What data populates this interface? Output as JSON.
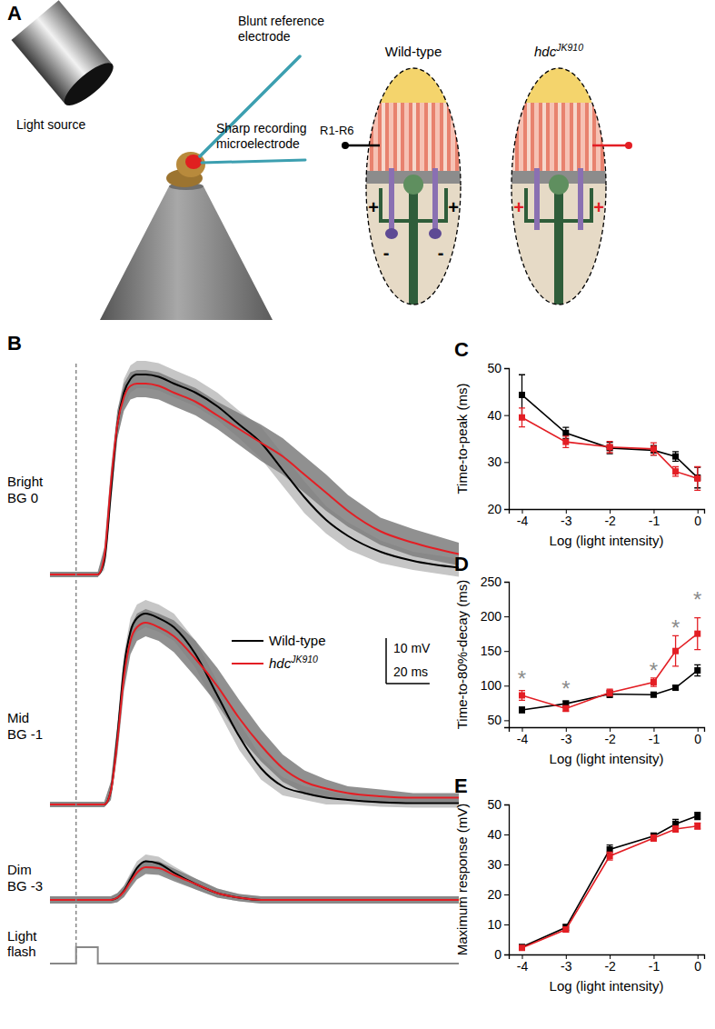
{
  "chart_data": [
    {
      "type": "line",
      "title": "B",
      "annotation": [
        "Bright",
        "BG 0"
      ],
      "tick_labels": false,
      "xlim": [
        -12,
        176
      ],
      "ylim": [
        -4,
        48
      ],
      "x": [
        -12,
        0,
        10,
        13,
        16,
        19,
        22,
        25,
        28,
        32,
        38,
        45,
        55,
        65,
        75,
        85,
        95,
        105,
        115,
        125,
        140,
        155,
        176
      ],
      "series": [
        {
          "color": "#000000",
          "values": [
            0,
            0,
            0,
            3,
            18,
            33,
            40,
            43,
            44,
            44,
            43.5,
            42,
            40,
            37,
            33,
            29,
            23,
            17,
            12,
            8.5,
            5,
            3,
            1.5
          ],
          "error": [
            0.6,
            0.6,
            0.6,
            2,
            3,
            3,
            3,
            3,
            3,
            3,
            3,
            3,
            3,
            3,
            3,
            3.5,
            3.5,
            3.5,
            3,
            3,
            2.5,
            2,
            2
          ]
        },
        {
          "color": "#e31e24",
          "values": [
            0,
            0,
            0,
            4,
            20,
            33,
            39,
            41.5,
            42,
            42,
            41.5,
            40,
            38,
            35,
            32,
            29,
            26,
            22,
            18,
            14,
            9.5,
            7,
            4.5
          ],
          "error": [
            0.6,
            0.6,
            0.6,
            2,
            3,
            3,
            3,
            3,
            3,
            3,
            3,
            3,
            3,
            3,
            3.5,
            4,
            4,
            4,
            4,
            3.5,
            3,
            3,
            2.5
          ]
        }
      ]
    },
    {
      "type": "line",
      "annotation": [
        "Mid",
        "BG -1"
      ],
      "tick_labels": false,
      "legend": "right",
      "xlim": [
        -12,
        176
      ],
      "ylim": [
        -4,
        46
      ],
      "x": [
        -12,
        0,
        10,
        13,
        16,
        19,
        22,
        25,
        28,
        32,
        38,
        45,
        55,
        65,
        75,
        85,
        95,
        105,
        115,
        125,
        140,
        155,
        176
      ],
      "series": [
        {
          "name": "Wild-type",
          "color": "#000000",
          "values": [
            0,
            0,
            0,
            0,
            3,
            15,
            30,
            38,
            41,
            42,
            41,
            39,
            33,
            24,
            15,
            8,
            4,
            2.5,
            1.5,
            1,
            0.5,
            0.3,
            0.3
          ],
          "error": [
            0.6,
            0.6,
            0.6,
            0.6,
            2,
            3,
            3,
            3,
            3,
            3,
            3,
            3,
            3,
            3,
            3,
            2.5,
            2,
            1.5,
            1.5,
            1,
            1,
            1,
            1
          ]
        },
        {
          "name": "hdcJK910",
          "color": "#e31e24",
          "values": [
            0,
            0,
            0,
            0,
            3,
            14,
            28,
            36,
            39,
            40,
            39,
            37,
            32,
            26,
            19,
            13,
            8,
            5,
            3.5,
            2.5,
            1.8,
            1.5,
            1.5
          ],
          "error": [
            0.6,
            0.6,
            0.6,
            0.6,
            2,
            3,
            3,
            3,
            3,
            3,
            3,
            3.5,
            4,
            4,
            4,
            3.5,
            3,
            2.5,
            2,
            1.5,
            1.5,
            1,
            1
          ]
        }
      ],
      "scale_bar": {
        "x": 20,
        "y": 10,
        "x_label": "20 ms",
        "y_label": "10 mV"
      }
    },
    {
      "type": "line",
      "annotation": [
        "Dim",
        "BG -3"
      ],
      "tick_labels": false,
      "xlim": [
        -12,
        176
      ],
      "ylim": [
        -4,
        12
      ],
      "x": [
        -12,
        0,
        10,
        13,
        16,
        19,
        22,
        25,
        28,
        32,
        38,
        45,
        55,
        65,
        75,
        85,
        95,
        105,
        115,
        125,
        140,
        155,
        176
      ],
      "series": [
        {
          "color": "#000000",
          "values": [
            0,
            0,
            0,
            0,
            0,
            0.5,
            2,
            4.5,
            7,
            8.5,
            8,
            6,
            3.5,
            1.5,
            0.5,
            0,
            0,
            0,
            0,
            0,
            0,
            0,
            0
          ],
          "error": [
            0.8,
            0.8,
            0.8,
            0.8,
            0.8,
            1,
            1.2,
            1.4,
            1.5,
            1.5,
            1.5,
            1.4,
            1.2,
            1,
            0.8,
            0.8,
            0.8,
            0.8,
            0.8,
            0.8,
            0.8,
            0.8,
            0.8
          ]
        },
        {
          "color": "#e31e24",
          "values": [
            0,
            0,
            0,
            0,
            0,
            0.5,
            1.8,
            4,
            6,
            7.2,
            7,
            5.5,
            3.5,
            1.5,
            0.5,
            0,
            0,
            0,
            0,
            0,
            0,
            0,
            0
          ],
          "error": [
            0.8,
            0.8,
            0.8,
            0.8,
            0.8,
            1,
            1.2,
            1.4,
            1.5,
            1.5,
            1.5,
            1.4,
            1.2,
            1,
            0.8,
            0.8,
            0.8,
            0.8,
            0.8,
            0.8,
            0.8,
            0.8,
            0.8
          ]
        }
      ],
      "flash": {
        "label": [
          "Light",
          "flash"
        ],
        "on": 0,
        "off": 10
      }
    },
    {
      "type": "line",
      "title": "C",
      "x_label": "Log (light intensity)",
      "y_label": "Time-to-peak (ms)",
      "xlim": [
        -4.3,
        0.15
      ],
      "ylim": [
        20,
        50
      ],
      "xticks": [
        -4,
        -3,
        -2,
        -1,
        0
      ],
      "yticks": [
        20,
        30,
        40,
        50
      ],
      "marker": "square",
      "x": [
        -4,
        -3,
        -2,
        -1,
        -0.5,
        0
      ],
      "series": [
        {
          "color": "#000000",
          "values": [
            44.3,
            36.2,
            33,
            32.5,
            31.2,
            26.7
          ],
          "error": [
            4.3,
            1.2,
            1.2,
            1,
            1,
            2.2
          ]
        },
        {
          "color": "#e31e24",
          "values": [
            39.5,
            34.3,
            33.2,
            32.8,
            28,
            26.5
          ],
          "error": [
            2,
            1.2,
            1.2,
            1.3,
            1,
            2.5
          ]
        }
      ]
    },
    {
      "type": "line",
      "title": "D",
      "x_label": "Log (light intensity)",
      "y_label": "Time-to-80%-decay (ms)",
      "xlim": [
        -4.3,
        0.15
      ],
      "ylim": [
        40,
        250
      ],
      "xticks": [
        -4,
        -3,
        -2,
        -1,
        0
      ],
      "yticks": [
        50,
        100,
        150,
        200,
        250
      ],
      "marker": "square",
      "x": [
        -4,
        -3,
        -2,
        -1,
        -0.5,
        0
      ],
      "series": [
        {
          "color": "#000000",
          "values": [
            65,
            74,
            88,
            87,
            97,
            122
          ],
          "error": [
            4,
            4,
            5,
            3,
            3,
            8
          ]
        },
        {
          "color": "#e31e24",
          "values": [
            86,
            67,
            90,
            105,
            150,
            175
          ],
          "error": [
            7,
            4,
            5,
            6,
            22,
            23
          ]
        }
      ],
      "annotations": [
        {
          "x": -4,
          "y": 118,
          "text": "*"
        },
        {
          "x": -3,
          "y": 103,
          "text": "*"
        },
        {
          "x": -1,
          "y": 130,
          "text": "*"
        },
        {
          "x": -0.5,
          "y": 192,
          "text": "*"
        },
        {
          "x": 0,
          "y": 232,
          "text": "*"
        }
      ]
    },
    {
      "type": "line",
      "title": "E",
      "x_label": "Log (light intensity)",
      "y_label": "Maximum response (mV)",
      "xlim": [
        -4.3,
        0.15
      ],
      "ylim": [
        0,
        50
      ],
      "xticks": [
        -4,
        -3,
        -2,
        -1,
        0
      ],
      "yticks": [
        0,
        10,
        20,
        30,
        40,
        50
      ],
      "marker": "square",
      "x": [
        -4,
        -3,
        -2,
        -1,
        -0.5,
        0
      ],
      "series": [
        {
          "color": "#000000",
          "values": [
            2.5,
            9,
            35,
            39.5,
            43.5,
            46.2
          ],
          "error": [
            0.5,
            1,
            1.5,
            1,
            1.5,
            1.2
          ]
        },
        {
          "color": "#e31e24",
          "values": [
            2.2,
            8.3,
            32.8,
            38.8,
            41.8,
            42.8
          ],
          "error": [
            0.5,
            0.8,
            1.3,
            1,
            1,
            1
          ]
        }
      ]
    }
  ],
  "diagram": {
    "title": "A",
    "light_source": "Light source",
    "reference_electrode": [
      "Blunt reference",
      "electrode"
    ],
    "recording_electrode": [
      "Sharp recording",
      "microelectrode"
    ],
    "recording_site": "R1-R6",
    "eyes": [
      {
        "name": "Wild-type",
        "signs": [
          "+",
          "+",
          "-",
          "-"
        ]
      },
      {
        "name": "hdcJK910",
        "signs": [
          "+",
          "+"
        ]
      }
    ]
  }
}
